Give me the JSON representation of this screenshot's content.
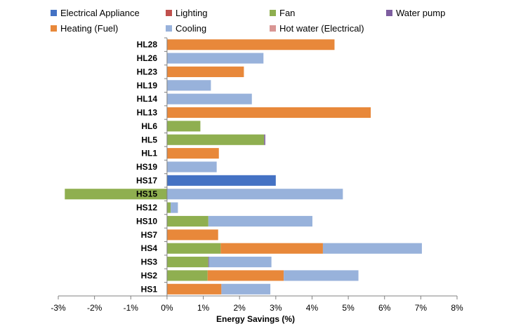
{
  "chart_data": {
    "type": "bar",
    "orientation": "horizontal",
    "stacked": true,
    "title": "",
    "xlabel": "Energy Savings (%)",
    "ylabel": "",
    "xlim": [
      -3,
      8
    ],
    "x_ticks": [
      -3,
      -2,
      -1,
      0,
      1,
      2,
      3,
      4,
      5,
      6,
      7,
      8
    ],
    "x_tick_labels": [
      "-3%",
      "-2%",
      "-1%",
      "0%",
      "1%",
      "2%",
      "3%",
      "4%",
      "5%",
      "6%",
      "7%",
      "8%"
    ],
    "grid": false,
    "legend_position": "top",
    "categories": [
      "HL28",
      "HL26",
      "HL23",
      "HL19",
      "HL14",
      "HL13",
      "HL6",
      "HL5",
      "HL1",
      "HS19",
      "HS17",
      "HS15",
      "HS12",
      "HS10",
      "HS7",
      "HS4",
      "HS3",
      "HS2",
      "HS1"
    ],
    "series": [
      {
        "name": "Electrical Appliance",
        "color": "#4472C4",
        "values": [
          0,
          0,
          0,
          0,
          0,
          0,
          0,
          0,
          0,
          0,
          3.0,
          0,
          0,
          0,
          0,
          0,
          0,
          0,
          0
        ]
      },
      {
        "name": "Lighting",
        "color": "#C0504D",
        "values": [
          0,
          0,
          0,
          0,
          0,
          0,
          0,
          0,
          0,
          0,
          0,
          0,
          0,
          0,
          0,
          0,
          0,
          0,
          0
        ]
      },
      {
        "name": "Fan",
        "color": "#8FAF50",
        "values": [
          0,
          0,
          0,
          0,
          0,
          0,
          0.92,
          2.68,
          0,
          0,
          0,
          -2.82,
          0.1,
          1.14,
          0,
          1.48,
          1.14,
          1.12,
          0
        ]
      },
      {
        "name": "Water pump",
        "color": "#7E5EA0",
        "values": [
          0,
          0,
          0,
          0,
          0,
          0,
          0,
          0.03,
          0,
          0,
          0,
          0,
          0,
          0,
          0,
          0,
          0.02,
          0,
          0
        ]
      },
      {
        "name": "Heating (Fuel)",
        "color": "#E8883A",
        "values": [
          4.62,
          0,
          2.12,
          0,
          0,
          5.62,
          0,
          0,
          1.43,
          0,
          0,
          0,
          0,
          0,
          1.41,
          2.82,
          0,
          2.1,
          1.5
        ]
      },
      {
        "name": "Cooling",
        "color": "#98B2DB",
        "values": [
          0,
          2.66,
          0,
          1.21,
          2.34,
          0,
          0,
          0,
          0,
          1.37,
          0,
          4.85,
          0.2,
          2.87,
          0,
          2.73,
          1.72,
          2.06,
          1.35
        ]
      },
      {
        "name": "Hot water (Electrical)",
        "color": "#D99694",
        "values": [
          0,
          0,
          0,
          0,
          0,
          0,
          0,
          0,
          0,
          0,
          0,
          0,
          0,
          0,
          0,
          0,
          0,
          0,
          0
        ]
      }
    ]
  }
}
